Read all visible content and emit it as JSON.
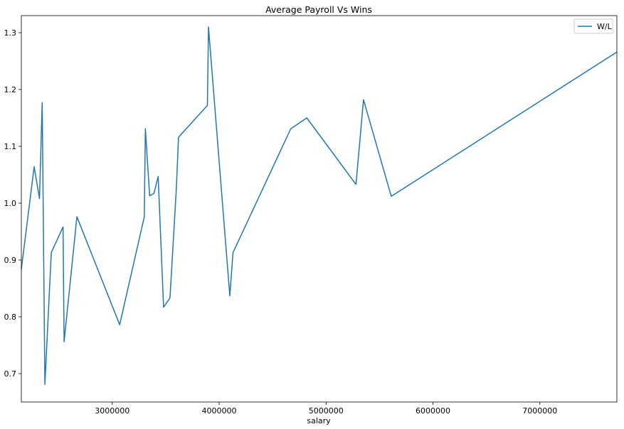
{
  "chart_data": {
    "type": "line",
    "title": "Average Payroll Vs Wins",
    "xlabel": "salary",
    "ylabel": "",
    "xlim": [
      2150000,
      7720000
    ],
    "ylim": [
      0.65,
      1.33
    ],
    "x_ticks": [
      3000000,
      4000000,
      5000000,
      6000000,
      7000000
    ],
    "x_tick_labels": [
      "3000000",
      "4000000",
      "5000000",
      "6000000",
      "7000000"
    ],
    "y_ticks": [
      0.7,
      0.8,
      0.9,
      1.0,
      1.1,
      1.2,
      1.3
    ],
    "y_tick_labels": [
      "0.7",
      "0.8",
      "0.9",
      "1.0",
      "1.1",
      "1.2",
      "1.3"
    ],
    "legend": {
      "position": "top-right",
      "entries": [
        "W/L"
      ]
    },
    "grid": false,
    "series": [
      {
        "name": "W/L",
        "color": "#1f77b4",
        "x": [
          2150000,
          2270000,
          2320000,
          2345000,
          2370000,
          2430000,
          2540000,
          2550000,
          2670000,
          3070000,
          3300000,
          3310000,
          3350000,
          3390000,
          3430000,
          3480000,
          3540000,
          3600000,
          3620000,
          3890000,
          3900000,
          4100000,
          4130000,
          4670000,
          4820000,
          5280000,
          5350000,
          5610000,
          7720000
        ],
        "y": [
          0.884,
          1.064,
          1.008,
          1.177,
          0.681,
          0.913,
          0.958,
          0.756,
          0.976,
          0.786,
          0.976,
          1.131,
          1.013,
          1.017,
          1.047,
          0.817,
          0.833,
          1.027,
          1.116,
          1.172,
          1.31,
          0.837,
          0.913,
          1.131,
          1.15,
          1.033,
          1.182,
          1.012,
          1.266
        ]
      }
    ]
  }
}
